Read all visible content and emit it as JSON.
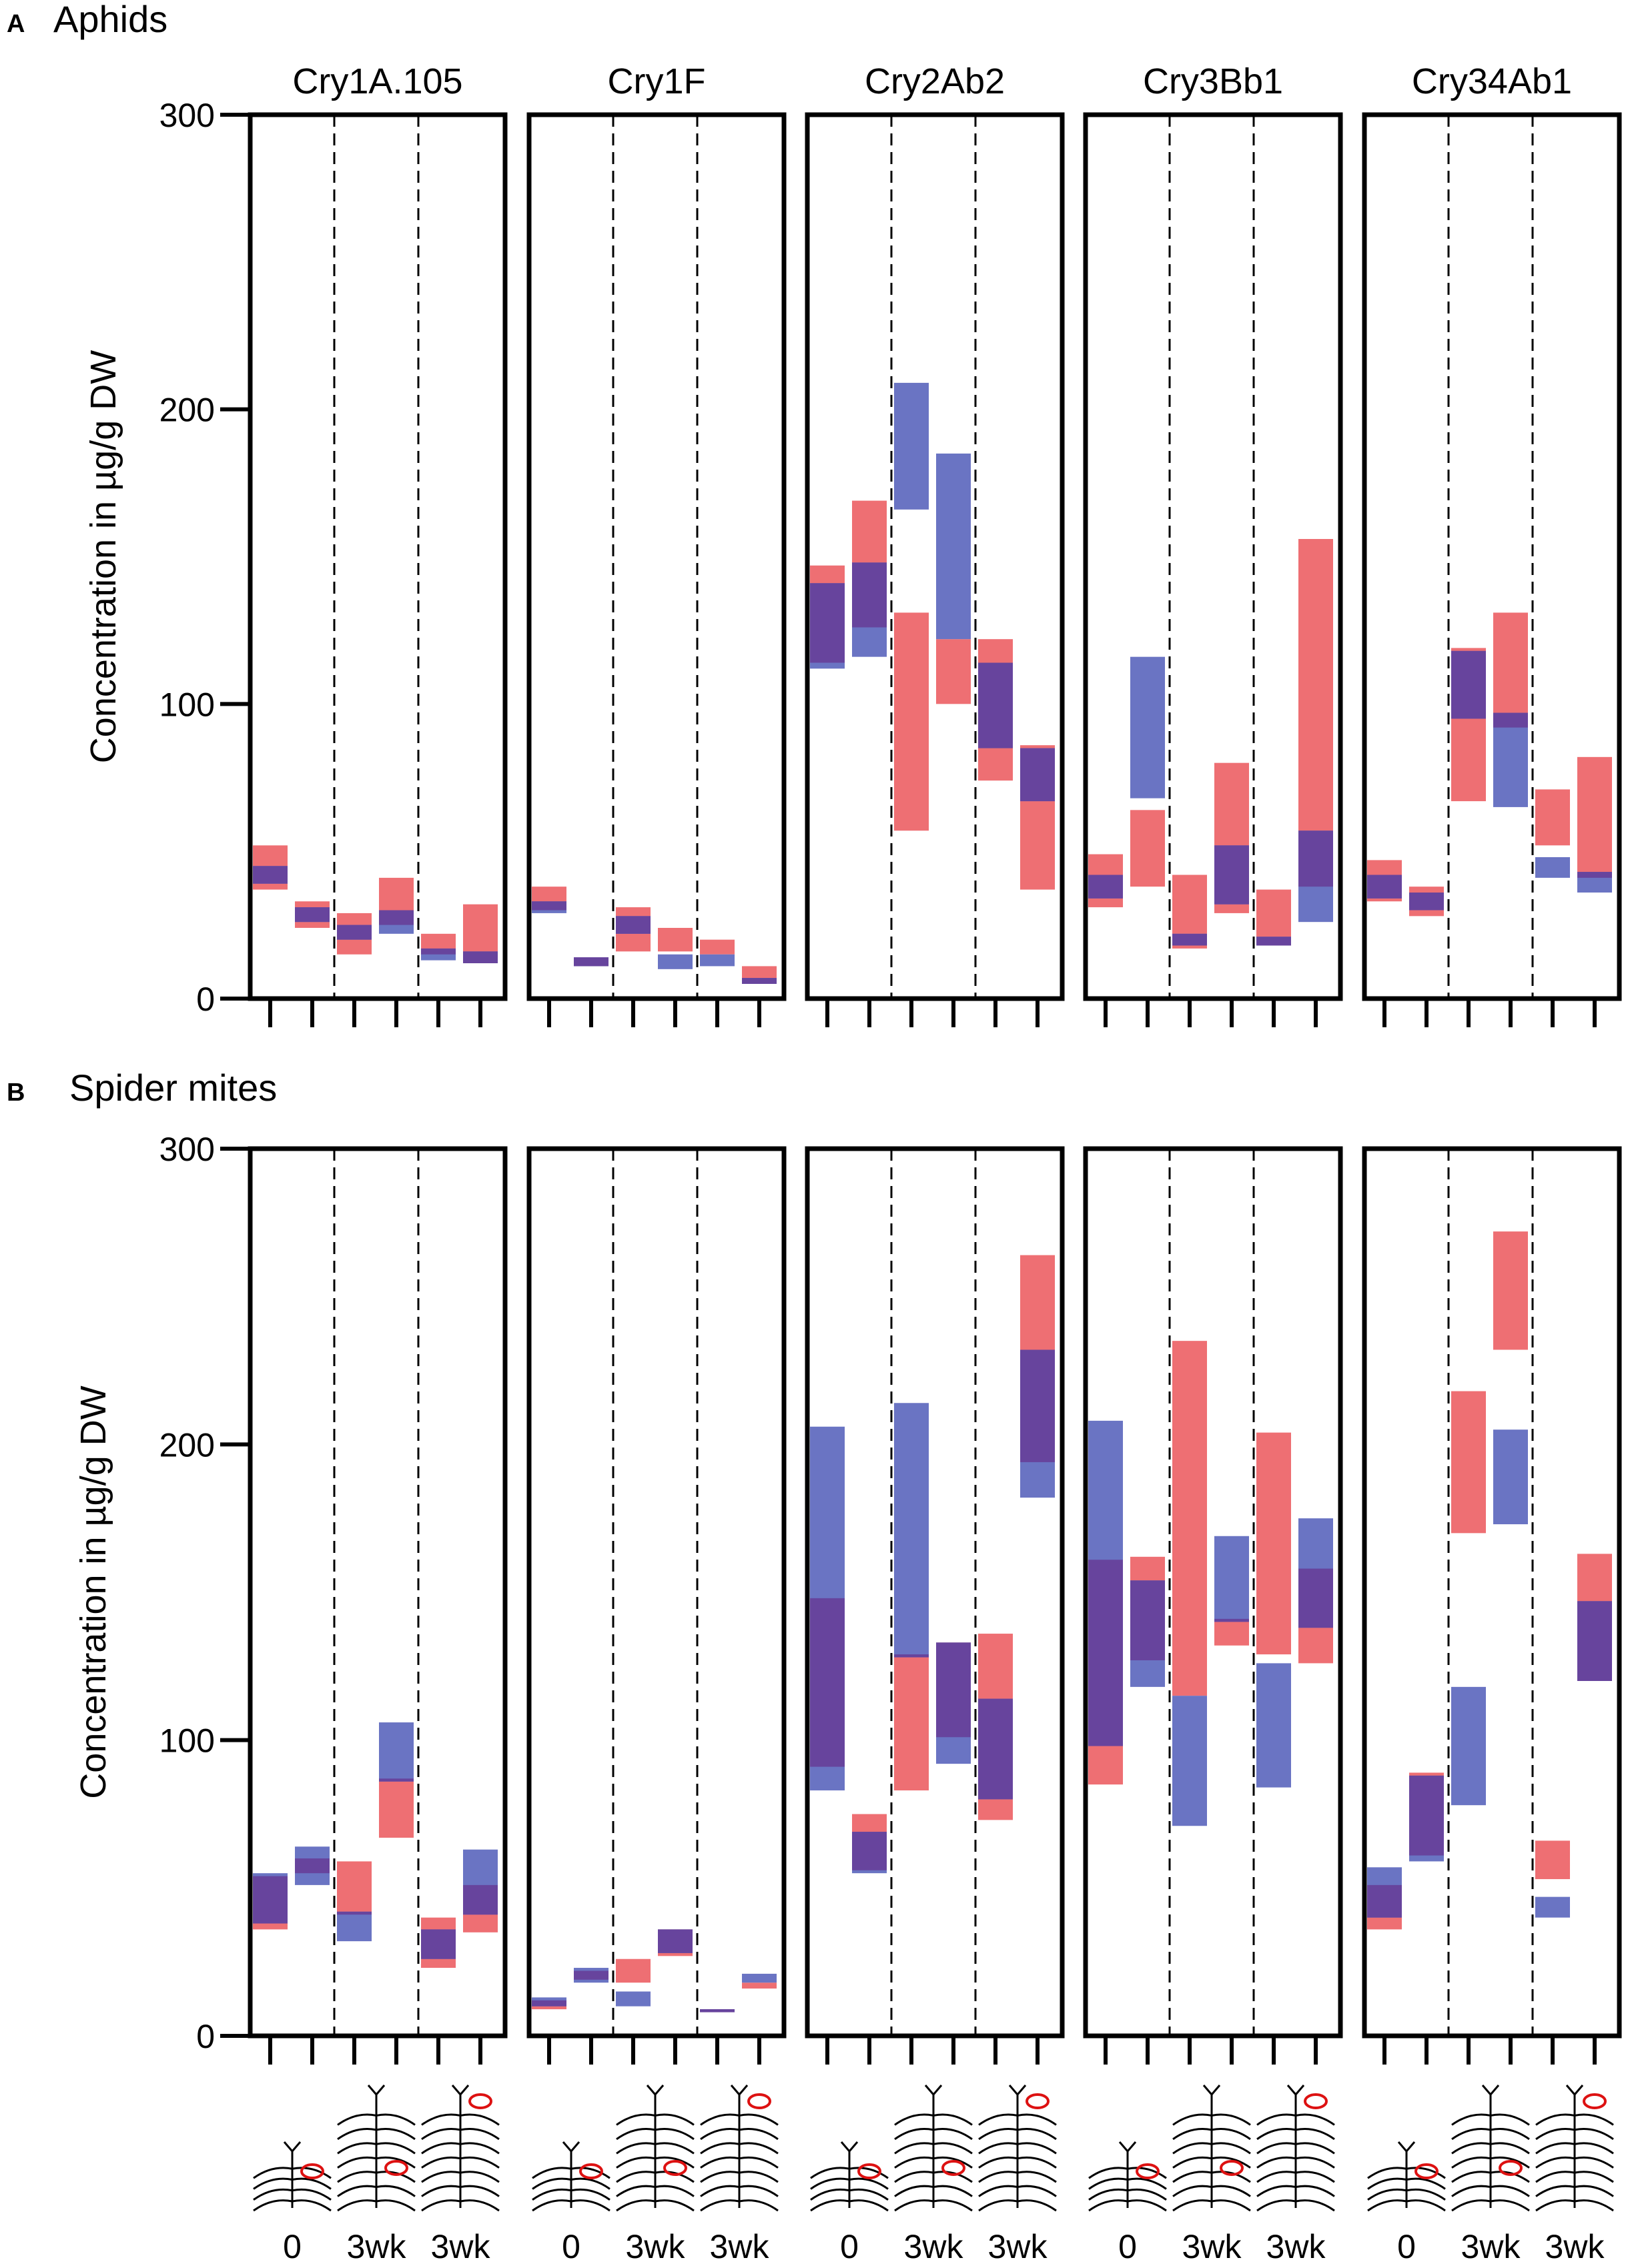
{
  "figure": {
    "panels": [
      {
        "letter": "A",
        "title": "Aphids"
      },
      {
        "letter": "B",
        "title": "Spider mites"
      }
    ],
    "columns": [
      "Cry1A.105",
      "Cry1F",
      "Cry2Ab2",
      "Cry3Bb1",
      "Cry34Ab1"
    ],
    "x_group_labels": [
      "0",
      "3wk",
      "3wk"
    ],
    "colors": {
      "pink": "#ee6f73",
      "blue": "#6a74c3",
      "overlap": "#67449d"
    }
  },
  "chart_data": [
    {
      "type": "bar",
      "subtype": "floating-range",
      "title": "Aphids",
      "panel": "A",
      "ylabel": "Concentration in µg/g DW",
      "ylim": [
        0,
        300
      ],
      "yticks": [
        0,
        100,
        200,
        300
      ],
      "facets": [
        "Cry1A.105",
        "Cry1F",
        "Cry2Ab2",
        "Cry3Bb1",
        "Cry34Ab1"
      ],
      "positions_per_facet": 6,
      "x_group_labels": [
        "0",
        "3wk",
        "3wk"
      ],
      "series": [
        {
          "name": "pink",
          "color": "#ee6f73",
          "ranges": [
            [
              [
                37,
                52
              ],
              [
                24,
                33
              ],
              [
                15,
                29
              ],
              [
                25,
                41
              ],
              [
                15,
                22
              ],
              [
                12,
                32
              ]
            ],
            [
              [
                30,
                38
              ],
              [
                11,
                14
              ],
              [
                16,
                31
              ],
              [
                16,
                24
              ],
              [
                15,
                20
              ],
              [
                5,
                11
              ]
            ],
            [
              [
                114,
                147
              ],
              [
                126,
                169
              ],
              [
                57,
                131
              ],
              [
                100,
                122
              ],
              [
                74,
                122
              ],
              [
                37,
                86
              ]
            ],
            [
              [
                31,
                49
              ],
              [
                38,
                64
              ],
              [
                17,
                42
              ],
              [
                29,
                80
              ],
              [
                18,
                37
              ],
              [
                38,
                156
              ]
            ],
            [
              [
                33,
                47
              ],
              [
                28,
                38
              ],
              [
                67,
                119
              ],
              [
                92,
                131
              ],
              [
                52,
                71
              ],
              [
                41,
                82
              ]
            ]
          ]
        },
        {
          "name": "blue",
          "color": "#6a74c3",
          "ranges": [
            [
              [
                39,
                45
              ],
              [
                26,
                31
              ],
              [
                20,
                25
              ],
              [
                22,
                30
              ],
              [
                13,
                17
              ],
              [
                12,
                16
              ]
            ],
            [
              [
                29,
                33
              ],
              [
                11,
                14
              ],
              [
                22,
                28
              ],
              [
                10,
                15
              ],
              [
                11,
                15
              ],
              [
                5,
                7
              ]
            ],
            [
              [
                112,
                141
              ],
              [
                116,
                148
              ],
              [
                166,
                209
              ],
              [
                122,
                185
              ],
              [
                85,
                114
              ],
              [
                67,
                85
              ]
            ],
            [
              [
                34,
                42
              ],
              [
                68,
                116
              ],
              [
                18,
                22
              ],
              [
                32,
                52
              ],
              [
                18,
                21
              ],
              [
                26,
                57
              ]
            ],
            [
              [
                34,
                42
              ],
              [
                30,
                36
              ],
              [
                95,
                118
              ],
              [
                65,
                97
              ],
              [
                41,
                48
              ],
              [
                36,
                43
              ]
            ]
          ]
        }
      ]
    },
    {
      "type": "bar",
      "subtype": "floating-range",
      "title": "Spider mites",
      "panel": "B",
      "ylabel": "Concentration in µg/g DW",
      "ylim": [
        0,
        300
      ],
      "yticks": [
        0,
        100,
        200,
        300
      ],
      "facets": [
        "Cry1A.105",
        "Cry1F",
        "Cry2Ab2",
        "Cry3Bb1",
        "Cry34Ab1"
      ],
      "positions_per_facet": 6,
      "x_group_labels": [
        "0",
        "3wk",
        "3wk"
      ],
      "series": [
        {
          "name": "pink",
          "color": "#ee6f73",
          "ranges": [
            [
              [
                36,
                54
              ],
              [
                55,
                60
              ],
              [
                41,
                59
              ],
              [
                67,
                87
              ],
              [
                23,
                40
              ],
              [
                35,
                51
              ]
            ],
            [
              [
                9,
                12
              ],
              [
                19,
                22
              ],
              [
                18,
                26
              ],
              [
                27,
                36
              ],
              [
                8,
                9
              ],
              [
                16,
                18
              ]
            ],
            [
              [
                91,
                148
              ],
              [
                56,
                75
              ],
              [
                83,
                129
              ],
              [
                101,
                133
              ],
              [
                73,
                136
              ],
              [
                194,
                264
              ]
            ],
            [
              [
                85,
                161
              ],
              [
                127,
                162
              ],
              [
                115,
                235
              ],
              [
                132,
                141
              ],
              [
                129,
                204
              ],
              [
                126,
                158
              ]
            ],
            [
              [
                36,
                51
              ],
              [
                61,
                89
              ],
              [
                170,
                218
              ],
              [
                232,
                272
              ],
              [
                53,
                66
              ],
              [
                120,
                163
              ]
            ]
          ]
        },
        {
          "name": "blue",
          "color": "#6a74c3",
          "ranges": [
            [
              [
                38,
                55
              ],
              [
                51,
                64
              ],
              [
                32,
                42
              ],
              [
                86,
                106
              ],
              [
                26,
                36
              ],
              [
                41,
                63
              ]
            ],
            [
              [
                10,
                13
              ],
              [
                18,
                23
              ],
              [
                10,
                15
              ],
              [
                28,
                36
              ],
              [
                8,
                9
              ],
              [
                18,
                21
              ]
            ],
            [
              [
                83,
                206
              ],
              [
                55,
                69
              ],
              [
                128,
                214
              ],
              [
                92,
                133
              ],
              [
                80,
                114
              ],
              [
                182,
                232
              ]
            ],
            [
              [
                98,
                208
              ],
              [
                118,
                154
              ],
              [
                71,
                115
              ],
              [
                140,
                169
              ],
              [
                84,
                126
              ],
              [
                138,
                175
              ]
            ],
            [
              [
                40,
                57
              ],
              [
                59,
                88
              ],
              [
                78,
                118
              ],
              [
                173,
                205
              ],
              [
                40,
                47
              ],
              [
                120,
                147
              ]
            ]
          ]
        }
      ]
    }
  ]
}
